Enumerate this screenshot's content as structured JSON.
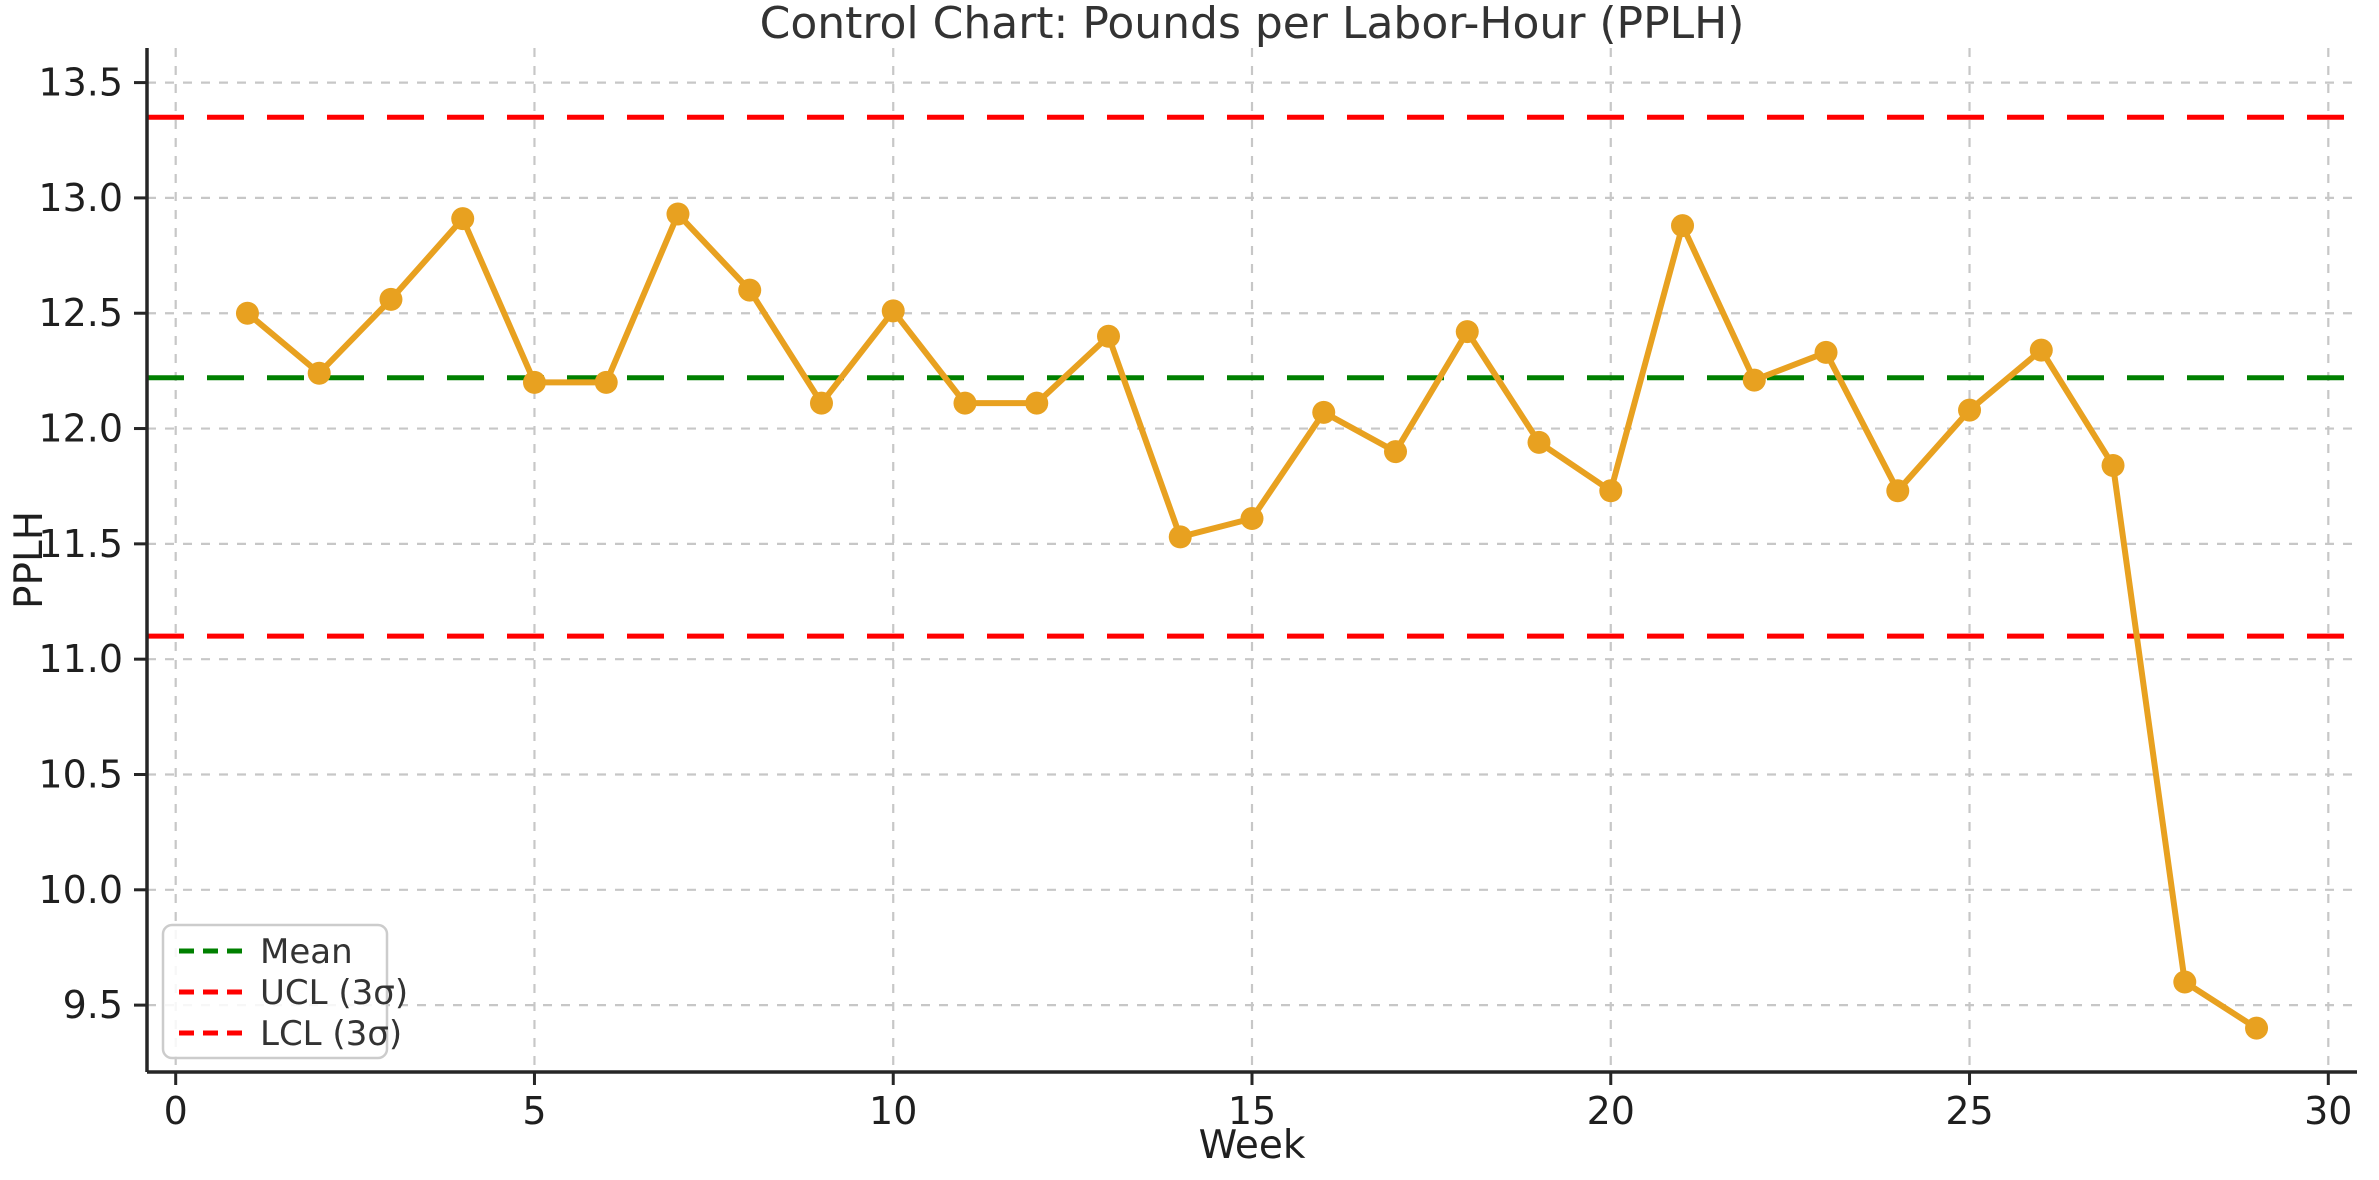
{
  "chart_data": {
    "type": "line",
    "title": "Control Chart: Pounds per Labor-Hour (PPLH)",
    "xlabel": "Week",
    "ylabel": "PPLH",
    "x": [
      1,
      2,
      3,
      4,
      5,
      6,
      7,
      8,
      9,
      10,
      11,
      12,
      13,
      14,
      15,
      16,
      17,
      18,
      19,
      20,
      21,
      22,
      23,
      24,
      25,
      26,
      27,
      28,
      29
    ],
    "series": [
      {
        "name": "PPLH",
        "color": "#E8A120",
        "marker": "o",
        "values": [
          12.5,
          12.24,
          12.56,
          12.91,
          12.2,
          12.2,
          12.93,
          12.6,
          12.11,
          12.51,
          12.11,
          12.11,
          12.4,
          11.53,
          11.61,
          12.07,
          11.9,
          12.42,
          11.94,
          11.73,
          12.88,
          12.21,
          12.33,
          11.73,
          12.08,
          12.34,
          11.84,
          9.6,
          9.4
        ]
      }
    ],
    "reference_lines": [
      {
        "label": "Mean",
        "value": 12.22,
        "color": "#008000",
        "style": "dashed"
      },
      {
        "label": "UCL (3σ)",
        "value": 13.35,
        "color": "#FF0000",
        "style": "dashed"
      },
      {
        "label": "LCL (3σ)",
        "value": 11.1,
        "color": "#FF0000",
        "style": "dashed"
      }
    ],
    "xticks": [
      0,
      5,
      10,
      15,
      20,
      25,
      30
    ],
    "yticks": [
      9.5,
      10.0,
      10.5,
      11.0,
      11.5,
      12.0,
      12.5,
      13.0,
      13.5
    ],
    "xlim": [
      -0.4,
      30.4
    ],
    "ylim": [
      9.21,
      13.65
    ],
    "grid": true,
    "grid_color": "#c7c7c7",
    "legend_position": "lower left",
    "spine_color": "#262626"
  }
}
